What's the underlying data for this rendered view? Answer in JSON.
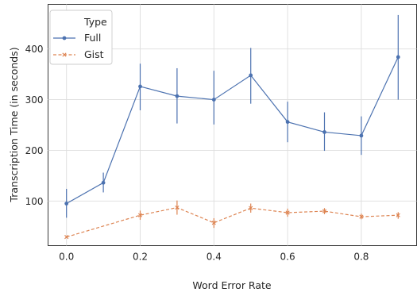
{
  "chart_data": {
    "type": "line",
    "xlabel": "Word Error Rate",
    "ylabel": "Transcription Time (in seconds)",
    "xlim": [
      -0.05,
      0.95
    ],
    "ylim": [
      12,
      488
    ],
    "x_ticks": [
      0.0,
      0.2,
      0.4,
      0.6,
      0.8
    ],
    "x_tick_labels": [
      "0.0",
      "0.2",
      "0.4",
      "0.6",
      "0.8"
    ],
    "y_ticks": [
      100,
      200,
      300,
      400
    ],
    "y_tick_labels": [
      "100",
      "200",
      "300",
      "400"
    ],
    "grid": true,
    "legend": {
      "title": "Type",
      "placement": "top-left",
      "entries": [
        "Full",
        "Gist"
      ]
    },
    "series": [
      {
        "name": "Full",
        "color": "#4c72b0",
        "line_style": "solid",
        "marker": "circle",
        "x": [
          0.0,
          0.1,
          0.2,
          0.3,
          0.4,
          0.5,
          0.6,
          0.7,
          0.8,
          0.9
        ],
        "y": [
          95,
          136,
          326,
          307,
          300,
          348,
          256,
          236,
          229,
          384
        ],
        "y_low": [
          67,
          117,
          279,
          253,
          251,
          292,
          216,
          199,
          191,
          300
        ],
        "y_high": [
          124,
          156,
          371,
          362,
          357,
          402,
          296,
          275,
          267,
          467
        ]
      },
      {
        "name": "Gist",
        "color": "#dd8452",
        "line_style": "dashed",
        "marker": "x",
        "x": [
          0.0,
          0.2,
          0.3,
          0.4,
          0.5,
          0.6,
          0.7,
          0.8,
          0.9
        ],
        "y": [
          29,
          72,
          87,
          57,
          86,
          77,
          80,
          69,
          72
        ],
        "y_low": [
          27,
          63,
          73,
          47,
          77,
          69,
          74,
          64,
          65
        ],
        "y_high": [
          31,
          81,
          101,
          66,
          95,
          85,
          86,
          75,
          78
        ]
      }
    ]
  }
}
